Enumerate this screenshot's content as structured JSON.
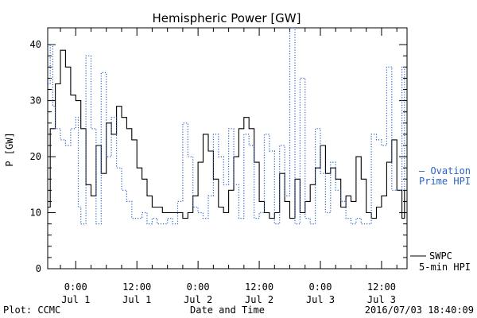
{
  "chart_data": {
    "type": "line",
    "title": "Hemispheric Power [GW]",
    "ylabel": "P [GW]",
    "xlabel": "Date and Time",
    "x_unit": "hours since Jul 1 00:00",
    "xlim": [
      -5.5,
      65.0
    ],
    "ylim": [
      0,
      43
    ],
    "yticks": [
      0,
      10,
      20,
      30,
      40
    ],
    "xticks": [
      {
        "x": 0,
        "time": "0:00",
        "day": "Jul 1"
      },
      {
        "x": 12,
        "time": "12:00",
        "day": "Jul 1"
      },
      {
        "x": 24,
        "time": "0:00",
        "day": "Jul 2"
      },
      {
        "x": 36,
        "time": "12:00",
        "day": "Jul 2"
      },
      {
        "x": 48,
        "time": "0:00",
        "day": "Jul 3"
      },
      {
        "x": 60,
        "time": "12:00",
        "day": "Jul 3"
      }
    ],
    "series": [
      {
        "name": "SWPC 5-min HPI",
        "style": "solid",
        "color": "#000000",
        "x": [
          -5.5,
          -5,
          -4,
          -3,
          -2,
          -1,
          0,
          1,
          2,
          3,
          4,
          5,
          6,
          7,
          8,
          9,
          10,
          11,
          12,
          13,
          14,
          15,
          16,
          17,
          18,
          19,
          20,
          21,
          22,
          23,
          24,
          25,
          26,
          27,
          28,
          29,
          30,
          31,
          32,
          33,
          34,
          35,
          36,
          37,
          38,
          39,
          40,
          41,
          42,
          43,
          44,
          45,
          46,
          47,
          48,
          49,
          50,
          51,
          52,
          53,
          54,
          55,
          56,
          57,
          58,
          59,
          60,
          61,
          62,
          63,
          64,
          64.5
        ],
        "y": [
          11,
          25,
          33,
          39,
          36,
          31,
          30,
          25,
          15,
          13,
          22,
          17,
          26,
          24,
          29,
          27,
          25,
          23,
          18,
          16,
          13,
          11,
          11,
          10,
          10,
          10,
          10,
          9,
          10,
          13,
          19,
          24,
          21,
          16,
          11,
          10,
          14,
          20,
          25,
          27,
          25,
          19,
          12,
          10,
          9,
          10,
          17,
          12,
          9,
          16,
          10,
          12,
          15,
          18,
          22,
          17,
          18,
          16,
          11,
          13,
          12,
          20,
          16,
          10,
          9,
          11,
          13,
          19,
          23,
          14,
          9,
          14
        ]
      },
      {
        "name": "Ovation Prime HPI",
        "style": "dotted",
        "color": "#2a63c4",
        "x": [
          -5.5,
          -5,
          -4.5,
          -4,
          -3,
          -2,
          -1,
          0,
          0.5,
          1,
          2,
          3,
          4,
          5,
          6,
          7,
          8,
          9,
          10,
          11,
          12,
          13,
          14,
          15,
          16,
          17,
          18,
          19,
          20,
          21,
          22,
          23,
          24,
          25,
          26,
          27,
          28,
          29,
          30,
          31,
          32,
          33,
          34,
          35,
          36,
          37,
          38,
          39,
          40,
          41,
          42,
          43,
          44,
          45,
          46,
          47,
          48,
          49,
          50,
          51,
          52,
          53,
          54,
          55,
          56,
          57,
          58,
          59,
          60,
          61,
          62,
          63,
          64,
          64.5
        ],
        "y": [
          33,
          40,
          29,
          25,
          23,
          22,
          25,
          27,
          11,
          8,
          38,
          25,
          8,
          35,
          20,
          27,
          18,
          14,
          12,
          9,
          9,
          10,
          8,
          9,
          8,
          8,
          9,
          8,
          12,
          26,
          20,
          11,
          10,
          9,
          13,
          24,
          20,
          15,
          25,
          15,
          9,
          24,
          22,
          9,
          10,
          24,
          21,
          8,
          22,
          13,
          43,
          8,
          34,
          9,
          8,
          25,
          17,
          10,
          19,
          14,
          12,
          9,
          8,
          9,
          8,
          8,
          24,
          23,
          22,
          36,
          14,
          14,
          36,
          14
        ]
      }
    ],
    "legend": [
      {
        "line1": "— Ovation",
        "line2": "Prime HPI",
        "color": "#2a63c4"
      },
      {
        "line1": "SWPC",
        "line2": "5-min HPI",
        "color": "#000000"
      }
    ],
    "footer_left": "Plot: CCMC",
    "footer_right": "2016/07/03 18:40:09"
  }
}
